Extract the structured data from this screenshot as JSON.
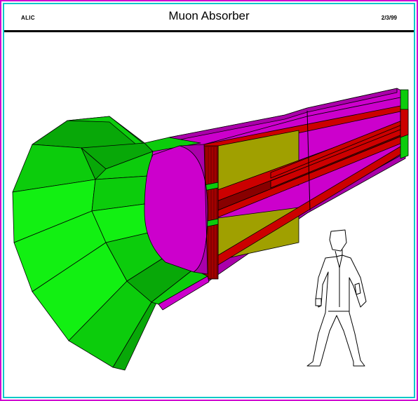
{
  "header": {
    "left_label": "ALIC",
    "title": "Muon Absorber",
    "date": "2/3/99"
  },
  "colors": {
    "frame_outer": "#d000d0",
    "frame_inner": "#00c8c8",
    "green_light": "#12f012",
    "green_mid": "#0ccc0c",
    "green_dark": "#08a808",
    "magenta": "#cc00cc",
    "magenta_dark": "#990099",
    "red": "#cc0000",
    "red_dark": "#880000",
    "olive": "#a0a000",
    "olive_dark": "#808000"
  },
  "icons": {
    "human_figure": "human-scale-figure-icon"
  }
}
